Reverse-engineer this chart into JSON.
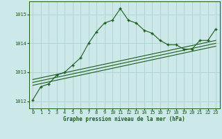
{
  "xlabel": "Graphe pression niveau de la mer (hPa)",
  "background_color": "#cce8e8",
  "grid_color": "#b0d4d4",
  "line_color": "#1a5c1a",
  "ylim": [
    1011.75,
    1015.45
  ],
  "xlim": [
    -0.5,
    23.5
  ],
  "yticks": [
    1012,
    1013,
    1014,
    1015
  ],
  "xticks": [
    0,
    1,
    2,
    3,
    4,
    5,
    6,
    7,
    8,
    9,
    10,
    11,
    12,
    13,
    14,
    15,
    16,
    17,
    18,
    19,
    20,
    21,
    22,
    23
  ],
  "main_line": {
    "x": [
      0,
      1,
      2,
      3,
      4,
      5,
      6,
      7,
      8,
      9,
      10,
      11,
      12,
      13,
      14,
      15,
      16,
      17,
      18,
      19,
      20,
      21,
      22,
      23
    ],
    "y": [
      1012.05,
      1012.5,
      1012.6,
      1012.9,
      1013.0,
      1013.25,
      1013.5,
      1014.0,
      1014.4,
      1014.7,
      1014.8,
      1015.2,
      1014.8,
      1014.7,
      1014.45,
      1014.35,
      1014.1,
      1013.95,
      1013.95,
      1013.8,
      1013.8,
      1014.1,
      1014.1,
      1014.5
    ]
  },
  "line2": {
    "x": [
      0,
      23
    ],
    "y": [
      1012.55,
      1013.9
    ]
  },
  "line3": {
    "x": [
      0,
      23
    ],
    "y": [
      1012.65,
      1014.0
    ]
  },
  "line4": {
    "x": [
      0,
      23
    ],
    "y": [
      1012.75,
      1014.1
    ]
  }
}
